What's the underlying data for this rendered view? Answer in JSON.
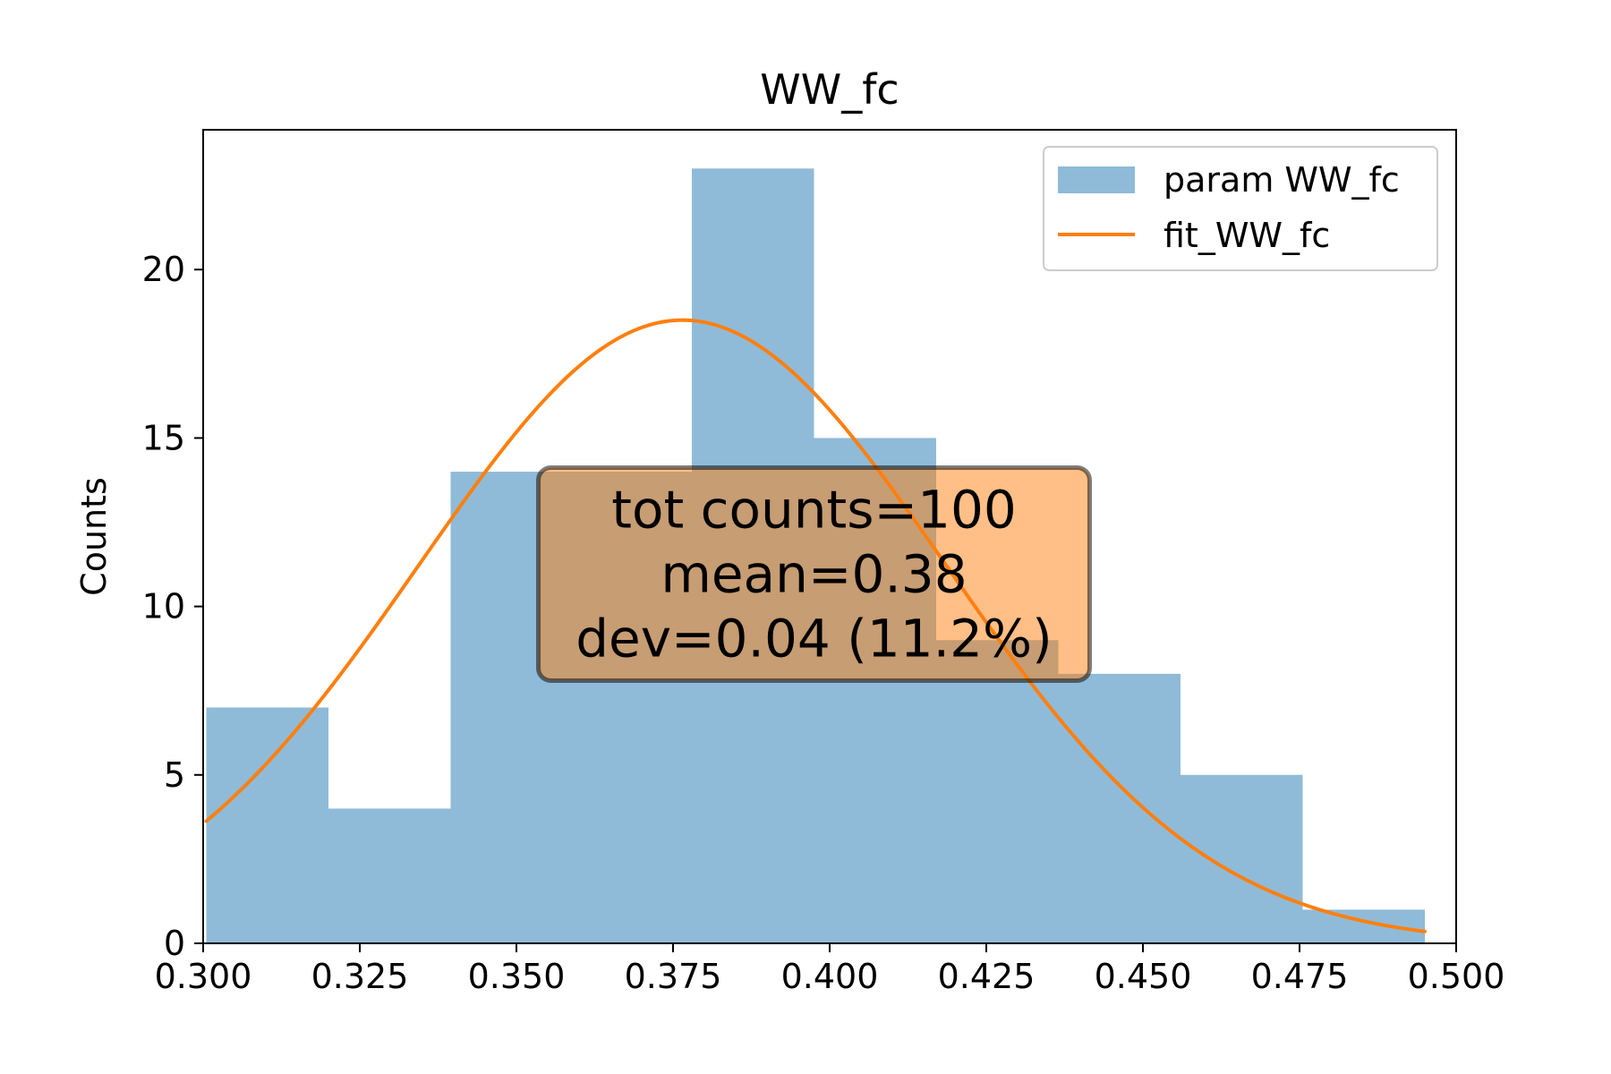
{
  "chart_data": {
    "type": "bar",
    "title": "WW_fc",
    "xlabel": "",
    "ylabel": "Counts",
    "xlim": [
      0.3,
      0.5
    ],
    "ylim": [
      0,
      24.15
    ],
    "x_ticks": [
      0.3,
      0.325,
      0.35,
      0.375,
      0.4,
      0.425,
      0.45,
      0.475,
      0.5
    ],
    "x_tick_labels": [
      "0.300",
      "0.325",
      "0.350",
      "0.375",
      "0.400",
      "0.425",
      "0.450",
      "0.475",
      "0.500"
    ],
    "y_ticks": [
      0,
      5,
      10,
      15,
      20
    ],
    "y_tick_labels": [
      "0",
      "5",
      "10",
      "15",
      "20"
    ],
    "grid": false,
    "legend_position": "top-right",
    "series": [
      {
        "name": "param WW_fc",
        "kind": "histogram",
        "color": "#1f77b4",
        "alpha": 0.5,
        "bin_edges": [
          0.3005,
          0.32,
          0.3395,
          0.359,
          0.378,
          0.3975,
          0.417,
          0.4365,
          0.456,
          0.4755,
          0.495
        ],
        "counts": [
          7,
          4,
          14,
          14,
          23,
          15,
          9,
          8,
          5,
          1
        ]
      },
      {
        "name": "fit_WW_fc",
        "kind": "gaussian_fit",
        "color": "#ff7f0e",
        "amplitude": 18.5,
        "mean": 0.3765,
        "sigma": 0.0421,
        "x_range": [
          0.3005,
          0.495
        ]
      }
    ],
    "annotations": [
      {
        "lines": [
          "tot counts=100",
          "mean=0.38",
          "dev=0.04 (11.2%)"
        ],
        "box_color": "#ff7f0e",
        "box_alpha": 0.5,
        "edge_color": "#000000",
        "center_x": 0.3975,
        "center_y": 10.96
      }
    ]
  }
}
